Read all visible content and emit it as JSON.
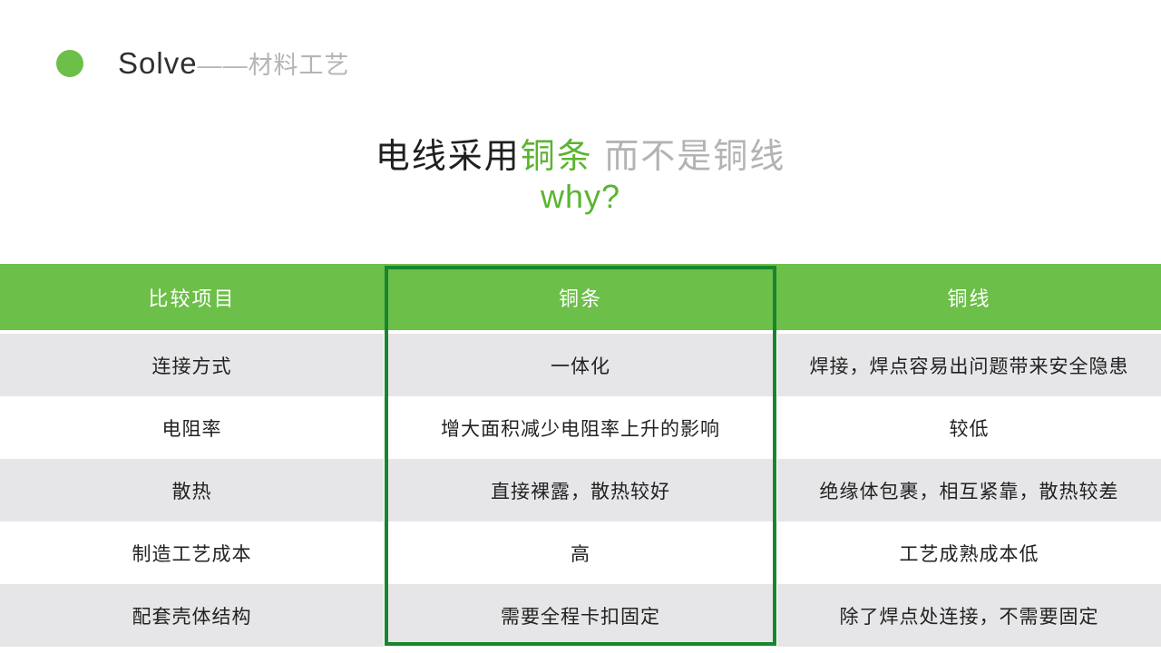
{
  "colors": {
    "green": "#6cbf48",
    "green-dark": "#17862e",
    "title-green": "#5bb431",
    "row-gray": "#e6e6e8",
    "gray-text": "#b5b5b5",
    "dark-text": "#222222"
  },
  "brand": {
    "title": "Solve",
    "subtitle": "——材料工艺"
  },
  "title": {
    "part_black": "电线采用",
    "part_green": "铜条",
    "part_gray": " 而不是铜线",
    "subtitle": "why?"
  },
  "table": {
    "header": [
      "比较项目",
      "铜条",
      "铜线"
    ],
    "rows": [
      {
        "cells": [
          "连接方式",
          "一体化",
          "焊接，焊点容易出问题带来安全隐患"
        ]
      },
      {
        "cells": [
          "电阻率",
          "增大面积减少电阻率上升的影响",
          "较低"
        ]
      },
      {
        "cells": [
          "散热",
          "直接裸露，散热较好",
          "绝缘体包裹，相互紧靠，散热较差"
        ]
      },
      {
        "cells": [
          "制造工艺成本",
          "高",
          "工艺成熟成本低"
        ]
      },
      {
        "cells": [
          "配套壳体结构",
          "需要全程卡扣固定",
          "除了焊点处连接，不需要固定"
        ]
      }
    ]
  }
}
